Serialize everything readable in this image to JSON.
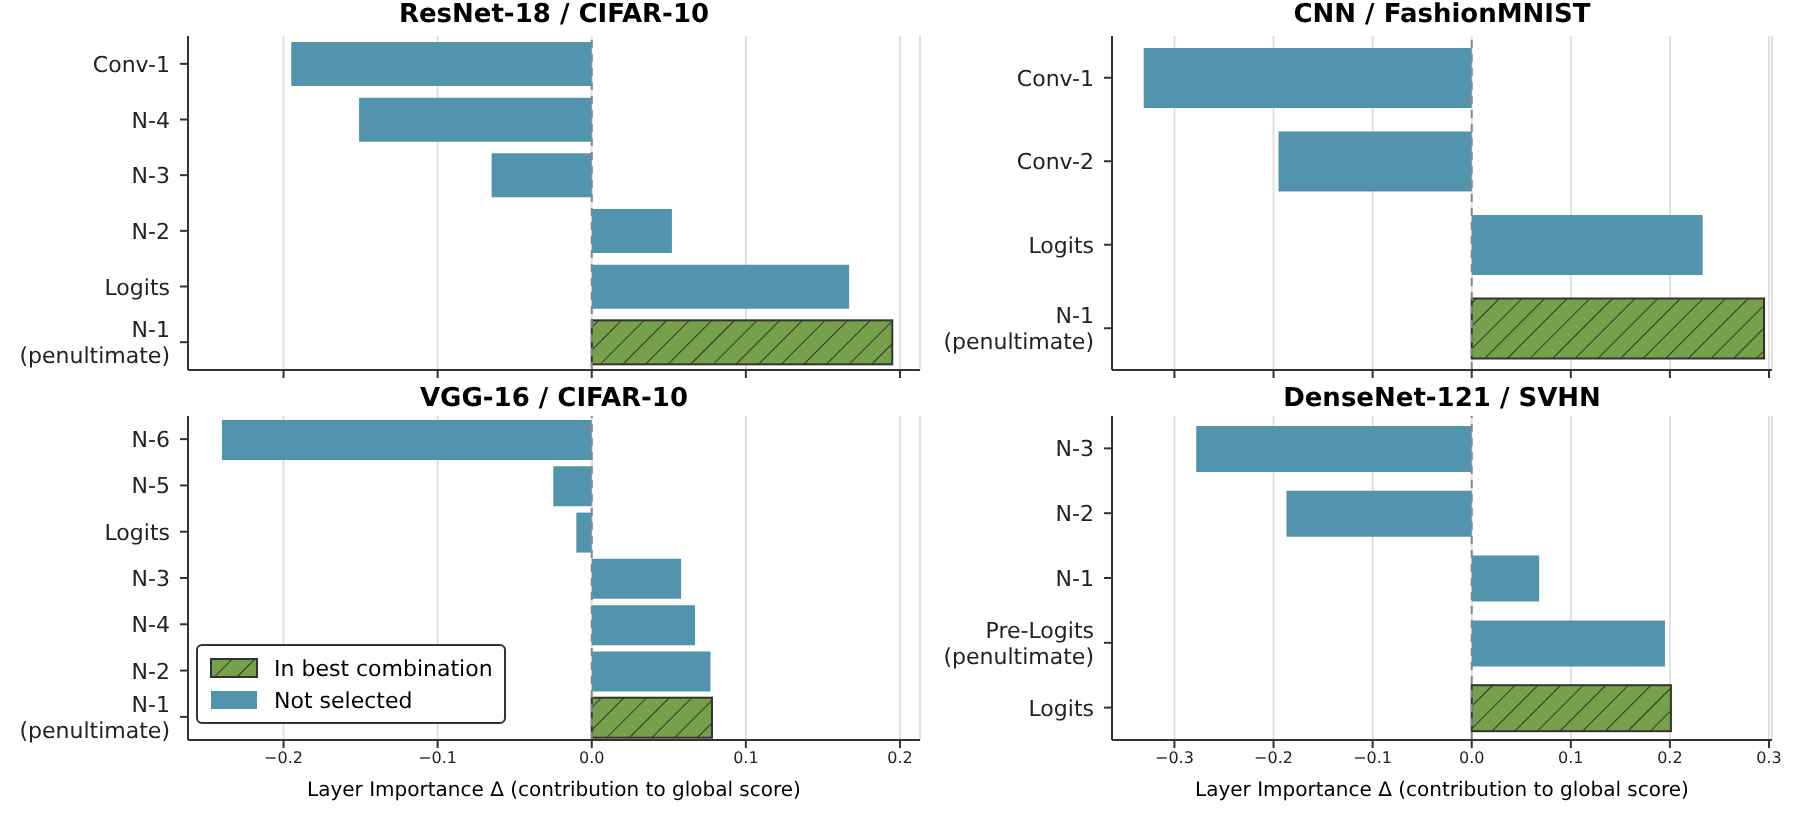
{
  "chart_data": [
    {
      "type": "bar",
      "orientation": "horizontal",
      "stacked": true,
      "title": "ResNet-18 / CIFAR-10",
      "categories": [
        "Conv-1",
        "N-4",
        "N-3",
        "N-2",
        "Logits",
        "N-1\n(penultimate)"
      ],
      "series": [
        {
          "color": "#77a04a",
          "values": [
            null,
            null,
            null,
            null,
            null,
            0.195
          ]
        },
        {
          "color": "#5294ad",
          "values": [
            -0.195,
            -0.151,
            -0.065,
            0.052,
            0.167,
            null
          ]
        }
      ],
      "xlim": [
        -0.262,
        0.213
      ],
      "xticks": [
        -0.2,
        -0.1,
        0,
        0.1,
        0.2
      ],
      "grid": "x",
      "tick_labels": "y",
      "ref_lines": [
        {
          "axis": "x",
          "value": 0,
          "color": "#888888",
          "line_style": "dashed"
        }
      ]
    },
    {
      "type": "bar",
      "orientation": "horizontal",
      "stacked": true,
      "title": "CNN / FashionMNIST",
      "categories": [
        "Conv-1",
        "Conv-2",
        "Logits",
        "N-1\n(penultimate)"
      ],
      "series": [
        {
          "color": "#77a04a",
          "values": [
            null,
            null,
            null,
            0.295
          ]
        },
        {
          "color": "#5294ad",
          "values": [
            -0.331,
            -0.195,
            0.233,
            null
          ]
        }
      ],
      "xlim": [
        -0.363,
        0.303
      ],
      "xticks": [
        -0.3,
        -0.2,
        -0.1,
        0,
        0.1,
        0.2,
        0.3
      ],
      "grid": "x",
      "tick_labels": "y",
      "ref_lines": [
        {
          "axis": "x",
          "value": 0,
          "color": "#888888",
          "line_style": "dashed"
        }
      ]
    },
    {
      "type": "bar",
      "orientation": "horizontal",
      "stacked": true,
      "title": "VGG-16 / CIFAR-10",
      "categories": [
        "N-6",
        "N-5",
        "Logits",
        "N-3",
        "N-4",
        "N-2",
        "N-1\n(penultimate)"
      ],
      "series": [
        {
          "name": "In best combination",
          "color": "#77a04a",
          "values": [
            null,
            null,
            null,
            null,
            null,
            null,
            0.078
          ]
        },
        {
          "name": "Not selected",
          "color": "#5294ad",
          "values": [
            -0.24,
            -0.025,
            -0.01,
            0.058,
            0.067,
            0.077,
            null
          ]
        }
      ],
      "xlim": [
        -0.262,
        0.213
      ],
      "xticks": [
        {
          "value": -0.2,
          "label": "−0.2"
        },
        {
          "value": -0.1,
          "label": "−0.1"
        },
        {
          "value": 0,
          "label": "0.0"
        },
        {
          "value": 0.1,
          "label": "0.1"
        },
        {
          "value": 0.2,
          "label": "0.2"
        }
      ],
      "xlabel": "Layer Importance Δ (contribution to global score)",
      "grid": "x",
      "legend": "bottom left",
      "ref_lines": [
        {
          "axis": "x",
          "value": 0,
          "color": "#888888",
          "line_style": "dashed"
        }
      ]
    },
    {
      "type": "bar",
      "orientation": "horizontal",
      "stacked": true,
      "title": "DenseNet-121 / SVHN",
      "categories": [
        "N-3",
        "N-2",
        "N-1",
        "Pre-Logits\n(penultimate)",
        "Logits"
      ],
      "series": [
        {
          "color": "#77a04a",
          "values": [
            null,
            null,
            null,
            null,
            0.201
          ]
        },
        {
          "color": "#5294ad",
          "values": [
            -0.278,
            -0.187,
            0.068,
            0.195,
            null
          ]
        }
      ],
      "xlim": [
        -0.363,
        0.303
      ],
      "xticks": [
        {
          "value": -0.3,
          "label": "−0.3"
        },
        {
          "value": -0.2,
          "label": "−0.2"
        },
        {
          "value": -0.1,
          "label": "−0.1"
        },
        {
          "value": 0,
          "label": "0.0"
        },
        {
          "value": 0.1,
          "label": "0.1"
        },
        {
          "value": 0.2,
          "label": "0.2"
        },
        {
          "value": 0.3,
          "label": "0.3"
        }
      ],
      "xlabel": "Layer Importance Δ (contribution to global score)",
      "grid": "x",
      "ref_lines": [
        {
          "axis": "x",
          "value": 0,
          "color": "#888888",
          "line_style": "dashed"
        }
      ]
    }
  ]
}
